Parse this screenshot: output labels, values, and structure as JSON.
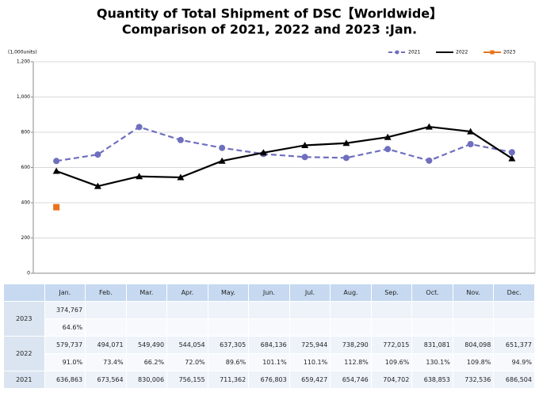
{
  "chart_data": {
    "type": "line",
    "title": "Quantity of Total Shipment of DSC【Worldwide】",
    "subtitle": "Comparison of 2021, 2022 and 2023 :Jan.",
    "y_label": "(1,000units)",
    "categories": [
      "Jan.",
      "Feb.",
      "Mar.",
      "Apr.",
      "May.",
      "Jun.",
      "Jul.",
      "Aug.",
      "Sep.",
      "Oct.",
      "Nov.",
      "Dec."
    ],
    "ylim": [
      0,
      1200
    ],
    "yticks": [
      0,
      200,
      400,
      600,
      800,
      {
        "value": 1000,
        "label": "1,000"
      },
      {
        "value": 1200,
        "label": "1,200"
      }
    ],
    "legend": "top-right",
    "series": [
      {
        "name": "2021",
        "color": "#6f6fc0",
        "marker": "circle",
        "dashed": true,
        "values": [
          636.863,
          673.564,
          830.006,
          756.155,
          711.362,
          676.803,
          659.427,
          654.746,
          704.702,
          638.853,
          732.536,
          686.504
        ],
        "value_labels": [
          "636,863",
          "673,564",
          "830,006",
          "756,155",
          "711,362",
          "676,803",
          "659,427",
          "654,746",
          "704,702",
          "638,853",
          "732,536",
          "686,504"
        ]
      },
      {
        "name": "2022",
        "color": "#000000",
        "marker": "triangle",
        "dashed": false,
        "values": [
          579.737,
          494.071,
          549.49,
          544.054,
          637.305,
          684.136,
          725.944,
          738.29,
          772.015,
          831.081,
          804.098,
          651.377
        ],
        "value_labels": [
          "579,737",
          "494,071",
          "549,490",
          "544,054",
          "637,305",
          "684,136",
          "725,944",
          "738,290",
          "772,015",
          "831,081",
          "804,098",
          "651,377"
        ]
      },
      {
        "name": "2023",
        "color": "#e8731c",
        "marker": "square",
        "dashed": false,
        "values": [
          374.767,
          null,
          null,
          null,
          null,
          null,
          null,
          null,
          null,
          null,
          null,
          null
        ],
        "value_labels": [
          "374,767",
          null,
          null,
          null,
          null,
          null,
          null,
          null,
          null,
          null,
          null,
          null
        ]
      }
    ]
  },
  "table": {
    "ratios_2023": [
      "64.6%"
    ],
    "ratios_2022": [
      "91.0%",
      "73.4%",
      "66.2%",
      "72.0%",
      "89.6%",
      "101.1%",
      "110.1%",
      "112.8%",
      "109.6%",
      "130.1%",
      "109.8%",
      "94.9%"
    ]
  }
}
